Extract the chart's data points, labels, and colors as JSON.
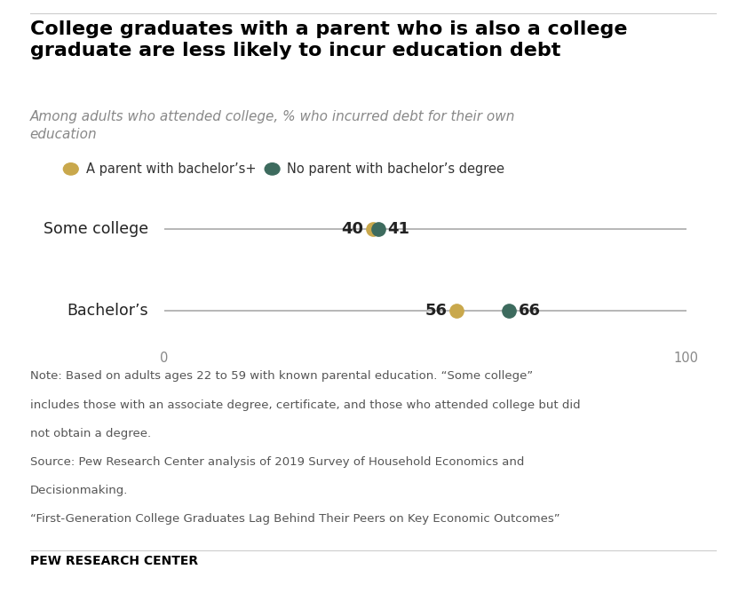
{
  "title": "College graduates with a parent who is also a college\ngraduate are less likely to incur education debt",
  "subtitle": "Among adults who attended college, % who incurred debt for their own\neducation",
  "categories": [
    "Some college",
    "Bachelor’s"
  ],
  "parent_bachelor": [
    40,
    56
  ],
  "no_parent_bachelor": [
    41,
    66
  ],
  "color_parent": "#C9A84C",
  "color_no_parent": "#3D6B5E",
  "xmin": 0,
  "xmax": 100,
  "legend_label_parent": "A parent with bachelor’s+",
  "legend_label_no_parent": "No parent with bachelor’s degree",
  "note_line1": "Note: Based on adults ages 22 to 59 with known parental education. “Some college”",
  "note_line2": "includes those with an associate degree, certificate, and those who attended college but did",
  "note_line3": "not obtain a degree.",
  "note_line4": "Source: Pew Research Center analysis of 2019 Survey of Household Economics and",
  "note_line5": "Decisionmaking.",
  "note_line6": "“First-Generation College Graduates Lag Behind Their Peers on Key Economic Outcomes”",
  "footer": "PEW RESEARCH CENTER",
  "background_color": "#FFFFFF",
  "line_color": "#AAAAAA",
  "tick_label_color": "#888888",
  "category_label_color": "#222222",
  "title_color": "#000000",
  "subtitle_color": "#888888",
  "note_color": "#555555"
}
